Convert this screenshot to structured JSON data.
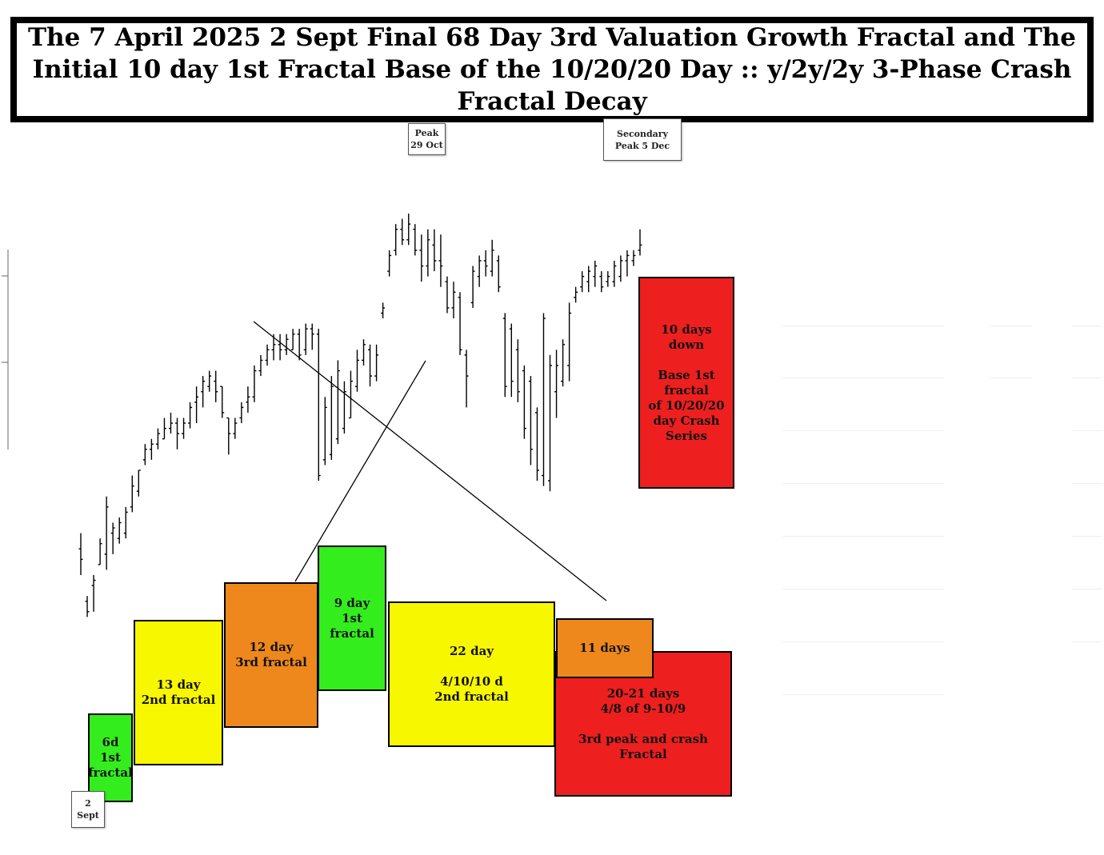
{
  "colors": {
    "green": "#33ee1c",
    "yellow": "#f7f700",
    "orange": "#ee881c",
    "red": "#ee1f1f",
    "bars": "#000000",
    "trendline": "#000000"
  },
  "chart_data": {
    "type": "ohlc",
    "title": "The 7 April 2025 2 Sept Final 68 Day 3rd Valuation Growth Fractal and The Initial 10 day 1st Fractal Base of the 10/20/20 Day :: y/2y/2y 3-Phase Crash Fractal Decay",
    "xlabel": "",
    "ylabel": "",
    "grid": false,
    "legend": "none",
    "axis_ticks_visible": false,
    "ylim": [
      0,
      100
    ],
    "note_units": "relative index (no printed scale)",
    "bars": [
      {
        "h": 28,
        "l": 20,
        "o": 25,
        "c": 23
      },
      {
        "h": 16,
        "l": 12,
        "o": 15,
        "c": 13
      },
      {
        "h": 20,
        "l": 13,
        "o": 18,
        "c": 19
      },
      {
        "h": 27,
        "l": 22,
        "o": 22,
        "c": 26
      },
      {
        "h": 35,
        "l": 21,
        "o": 24,
        "c": 33
      },
      {
        "h": 30,
        "l": 24,
        "o": 28,
        "c": 29
      },
      {
        "h": 31,
        "l": 26,
        "o": 27,
        "c": 30
      },
      {
        "h": 33,
        "l": 27,
        "o": 28,
        "c": 32
      },
      {
        "h": 39,
        "l": 32,
        "o": 33,
        "c": 37
      },
      {
        "h": 40,
        "l": 35,
        "o": 36,
        "c": 40
      },
      {
        "h": 45,
        "l": 41,
        "o": 42,
        "c": 44
      },
      {
        "h": 46,
        "l": 42,
        "o": 44,
        "c": 45
      },
      {
        "h": 48,
        "l": 44,
        "o": 45,
        "c": 47
      },
      {
        "h": 50,
        "l": 46,
        "o": 46,
        "c": 48
      },
      {
        "h": 51,
        "l": 47,
        "o": 48,
        "c": 49
      },
      {
        "h": 50,
        "l": 44,
        "o": 49,
        "c": 47
      },
      {
        "h": 50,
        "l": 46,
        "o": 47,
        "c": 49
      },
      {
        "h": 53,
        "l": 48,
        "o": 49,
        "c": 52
      },
      {
        "h": 56,
        "l": 49,
        "o": 53,
        "c": 54
      },
      {
        "h": 58,
        "l": 52,
        "o": 55,
        "c": 57
      },
      {
        "h": 59,
        "l": 55,
        "o": 56,
        "c": 58
      },
      {
        "h": 59,
        "l": 53,
        "o": 57,
        "c": 55
      },
      {
        "h": 56,
        "l": 50,
        "o": 56,
        "c": 51
      },
      {
        "h": 50,
        "l": 43,
        "o": 50,
        "c": 47
      },
      {
        "h": 50,
        "l": 46,
        "o": 47,
        "c": 49
      },
      {
        "h": 53,
        "l": 49,
        "o": 50,
        "c": 52
      },
      {
        "h": 56,
        "l": 51,
        "o": 53,
        "c": 54
      },
      {
        "h": 60,
        "l": 53,
        "o": 54,
        "c": 59
      },
      {
        "h": 62,
        "l": 58,
        "o": 59,
        "c": 61
      },
      {
        "h": 64,
        "l": 60,
        "o": 61,
        "c": 63
      },
      {
        "h": 66,
        "l": 61,
        "o": 63,
        "c": 64
      },
      {
        "h": 66,
        "l": 61,
        "o": 64,
        "c": 63
      },
      {
        "h": 66,
        "l": 62,
        "o": 63,
        "c": 65
      },
      {
        "h": 67,
        "l": 63,
        "o": 63,
        "c": 66
      },
      {
        "h": 67,
        "l": 61,
        "o": 66,
        "c": 62
      },
      {
        "h": 68,
        "l": 62,
        "o": 63,
        "c": 67
      },
      {
        "h": 68,
        "l": 63,
        "o": 67,
        "c": 66
      },
      {
        "h": 67,
        "l": 38,
        "o": 66,
        "c": 39
      },
      {
        "h": 54,
        "l": 41,
        "o": 42,
        "c": 52
      },
      {
        "h": 58,
        "l": 42,
        "o": 43,
        "c": 56
      },
      {
        "h": 61,
        "l": 45,
        "o": 46,
        "c": 59
      },
      {
        "h": 57,
        "l": 47,
        "o": 48,
        "c": 55
      },
      {
        "h": 59,
        "l": 50,
        "o": 50,
        "c": 57
      },
      {
        "h": 63,
        "l": 55,
        "o": 56,
        "c": 61
      },
      {
        "h": 65,
        "l": 60,
        "o": 61,
        "c": 64
      },
      {
        "h": 64,
        "l": 56,
        "o": 63,
        "c": 58
      },
      {
        "h": 64,
        "l": 57,
        "o": 58,
        "c": 62
      },
      {
        "h": 72,
        "l": 69,
        "o": 70,
        "c": 71
      },
      {
        "h": 82,
        "l": 77,
        "o": 78,
        "c": 81
      },
      {
        "h": 87,
        "l": 81,
        "o": 82,
        "c": 86
      },
      {
        "h": 88,
        "l": 83,
        "o": 86,
        "c": 84
      },
      {
        "h": 89,
        "l": 83,
        "o": 84,
        "c": 87
      },
      {
        "h": 87,
        "l": 81,
        "o": 86,
        "c": 82
      },
      {
        "h": 85,
        "l": 76,
        "o": 82,
        "c": 79
      },
      {
        "h": 86,
        "l": 77,
        "o": 79,
        "c": 84
      },
      {
        "h": 86,
        "l": 78,
        "o": 83,
        "c": 80
      },
      {
        "h": 85,
        "l": 75,
        "o": 80,
        "c": 79
      },
      {
        "h": 77,
        "l": 70,
        "o": 76,
        "c": 71
      },
      {
        "h": 76,
        "l": 69,
        "o": 71,
        "c": 74
      },
      {
        "h": 74,
        "l": 62,
        "o": 73,
        "c": 63
      },
      {
        "h": 63,
        "l": 52,
        "o": 62,
        "c": 58
      },
      {
        "h": 79,
        "l": 71,
        "o": 72,
        "c": 78
      },
      {
        "h": 81,
        "l": 75,
        "o": 77,
        "c": 80
      },
      {
        "h": 82,
        "l": 77,
        "o": 80,
        "c": 79
      },
      {
        "h": 84,
        "l": 77,
        "o": 78,
        "c": 82
      },
      {
        "h": 81,
        "l": 74,
        "o": 80,
        "c": 75
      },
      {
        "h": 70,
        "l": 54,
        "o": 69,
        "c": 56
      },
      {
        "h": 68,
        "l": 54,
        "o": 67,
        "c": 57
      },
      {
        "h": 65,
        "l": 53,
        "o": 63,
        "c": 55
      },
      {
        "h": 60,
        "l": 46,
        "o": 59,
        "c": 48
      },
      {
        "h": 58,
        "l": 41,
        "o": 57,
        "c": 44
      },
      {
        "h": 52,
        "l": 38,
        "o": 51,
        "c": 40
      },
      {
        "h": 70,
        "l": 37,
        "o": 39,
        "c": 69
      },
      {
        "h": 62,
        "l": 36,
        "o": 38,
        "c": 60
      },
      {
        "h": 63,
        "l": 50,
        "o": 55,
        "c": 60
      },
      {
        "h": 65,
        "l": 56,
        "o": 57,
        "c": 64
      },
      {
        "h": 72,
        "l": 57,
        "o": 60,
        "c": 70
      },
      {
        "h": 75,
        "l": 72,
        "o": 73,
        "c": 74
      },
      {
        "h": 78,
        "l": 74,
        "o": 75,
        "c": 77
      },
      {
        "h": 79,
        "l": 74,
        "o": 76,
        "c": 78
      },
      {
        "h": 80,
        "l": 75,
        "o": 77,
        "c": 79
      },
      {
        "h": 78,
        "l": 74,
        "o": 77,
        "c": 75
      },
      {
        "h": 78,
        "l": 75,
        "o": 76,
        "c": 77
      },
      {
        "h": 80,
        "l": 75,
        "o": 76,
        "c": 79
      },
      {
        "h": 81,
        "l": 76,
        "o": 77,
        "c": 80
      },
      {
        "h": 82,
        "l": 77,
        "o": 80,
        "c": 81
      },
      {
        "h": 82,
        "l": 79,
        "o": 80,
        "c": 81
      },
      {
        "h": 86,
        "l": 81,
        "o": 82,
        "c": 83
      }
    ],
    "annotations": [
      {
        "id": "ann-6d",
        "lines": [
          "6d",
          "1st",
          "fractal"
        ],
        "color": "green"
      },
      {
        "id": "ann-13d",
        "lines": [
          "13 day",
          "2nd fractal"
        ],
        "color": "yellow"
      },
      {
        "id": "ann-12d",
        "lines": [
          "12 day",
          "3rd fractal"
        ],
        "color": "orange"
      },
      {
        "id": "ann-9d",
        "lines": [
          "9 day",
          "1st fractal"
        ],
        "color": "green"
      },
      {
        "id": "ann-22d",
        "lines": [
          "22 day",
          "",
          "4/10/10 d",
          "2nd fractal"
        ],
        "color": "yellow"
      },
      {
        "id": "ann-11d",
        "lines": [
          "11 days"
        ],
        "color": "orange"
      },
      {
        "id": "ann-20d",
        "lines": [
          "20-21 days",
          "4/8 of 9-10/9",
          "",
          "3rd peak and crash Fractal"
        ],
        "color": "red"
      },
      {
        "id": "ann-10d",
        "lines": [
          "10 days",
          "down",
          "",
          "Base 1st fractal",
          "of  10/20/20",
          "day Crash",
          "Series"
        ],
        "color": "red"
      }
    ],
    "markers": [
      {
        "id": "marker-2sept",
        "lines": [
          "2",
          "Sept"
        ]
      },
      {
        "id": "marker-peak",
        "lines": [
          "Peak",
          "29 Oct"
        ]
      },
      {
        "id": "marker-secondary",
        "lines": [
          "Secondary",
          "Peak 5 Dec"
        ]
      }
    ]
  }
}
